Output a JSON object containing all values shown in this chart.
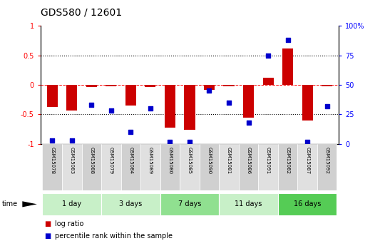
{
  "title": "GDS580 / 12601",
  "samples": [
    "GSM15078",
    "GSM15083",
    "GSM15088",
    "GSM15079",
    "GSM15084",
    "GSM15089",
    "GSM15080",
    "GSM15085",
    "GSM15090",
    "GSM15081",
    "GSM15086",
    "GSM15091",
    "GSM15082",
    "GSM15087",
    "GSM15092"
  ],
  "log_ratio": [
    -0.37,
    -0.44,
    -0.03,
    -0.02,
    -0.35,
    -0.04,
    -0.72,
    -0.76,
    -0.08,
    -0.02,
    -0.56,
    0.12,
    0.62,
    -0.6,
    -0.02
  ],
  "percentile": [
    3,
    3,
    33,
    28,
    10,
    30,
    2,
    2,
    45,
    35,
    18,
    75,
    88,
    2,
    32
  ],
  "groups": [
    {
      "label": "1 day",
      "start": 0,
      "end": 2,
      "color": "#c8f0c8"
    },
    {
      "label": "3 days",
      "start": 3,
      "end": 5,
      "color": "#c8f0c8"
    },
    {
      "label": "7 days",
      "start": 6,
      "end": 8,
      "color": "#90e090"
    },
    {
      "label": "11 days",
      "start": 9,
      "end": 11,
      "color": "#c8f0c8"
    },
    {
      "label": "16 days",
      "start": 12,
      "end": 14,
      "color": "#55cc55"
    }
  ],
  "bar_color": "#cc0000",
  "dot_color": "#0000cc",
  "ylim_left": [
    -1.0,
    1.0
  ],
  "ylim_right": [
    0,
    100
  ],
  "yticks_left": [
    -1.0,
    -0.5,
    0.0,
    0.5,
    1.0
  ],
  "yticks_right": [
    0,
    25,
    50,
    75,
    100
  ],
  "ytick_labels_left": [
    "-1",
    "-0.5",
    "0",
    "0.5",
    "1"
  ],
  "ytick_labels_right": [
    "0",
    "25",
    "50",
    "75",
    "100%"
  ],
  "hlines_dotted": [
    -0.5,
    0.5
  ],
  "hline_dashed": 0.0,
  "background_color": "#ffffff",
  "title_fontsize": 10,
  "tick_fontsize": 7,
  "sample_fontsize": 5,
  "legend_items": [
    "log ratio",
    "percentile rank within the sample"
  ],
  "group_fontsize": 7,
  "group_label_fontsize": 7
}
